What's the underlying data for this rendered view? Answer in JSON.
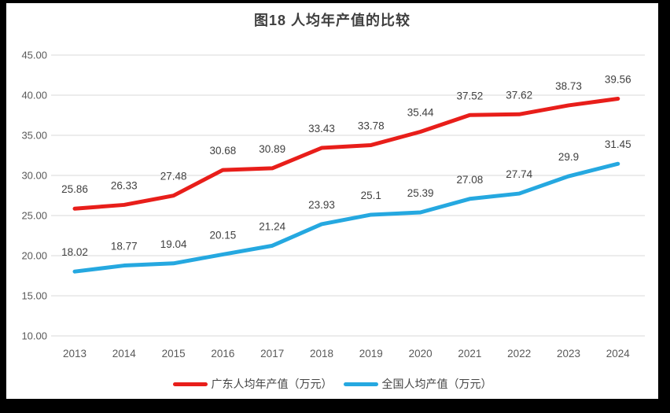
{
  "window": {
    "frame_color": "#000000",
    "panel_color": "#ffffff"
  },
  "colors": {
    "gridline": "#e0e0e0",
    "tick_text": "#595959",
    "data_label": "#404040",
    "title_text": "#3f3f3f"
  },
  "chart_data": {
    "type": "line",
    "title": "图18 人均年产值的比较",
    "xlabel": "",
    "ylabel": "",
    "categories": [
      "2013",
      "2014",
      "2015",
      "2016",
      "2017",
      "2018",
      "2019",
      "2020",
      "2021",
      "2022",
      "2023",
      "2024"
    ],
    "series": [
      {
        "name": "广东人均年产值（万元）",
        "color": "#e81e1a",
        "values": [
          25.86,
          26.33,
          27.48,
          30.68,
          30.89,
          33.43,
          33.78,
          35.44,
          37.52,
          37.62,
          38.73,
          39.56
        ]
      },
      {
        "name": "全国人均产值（万元）",
        "color": "#25a8e0",
        "values": [
          18.02,
          18.77,
          19.04,
          20.15,
          21.24,
          23.93,
          25.1,
          25.39,
          27.08,
          27.74,
          29.9,
          31.45
        ]
      }
    ],
    "ylim": [
      10,
      45
    ],
    "yticks": [
      {
        "value": 10,
        "label": "10.00"
      },
      {
        "value": 15,
        "label": "15.00"
      },
      {
        "value": 20,
        "label": "20.00"
      },
      {
        "value": 25,
        "label": "25.00"
      },
      {
        "value": 30,
        "label": "30.00"
      },
      {
        "value": 35,
        "label": "35.00"
      },
      {
        "value": 40,
        "label": "40.00"
      },
      {
        "value": 45,
        "label": "45.00"
      }
    ],
    "grid": true,
    "data_labels": true,
    "legend_position": "bottom"
  }
}
